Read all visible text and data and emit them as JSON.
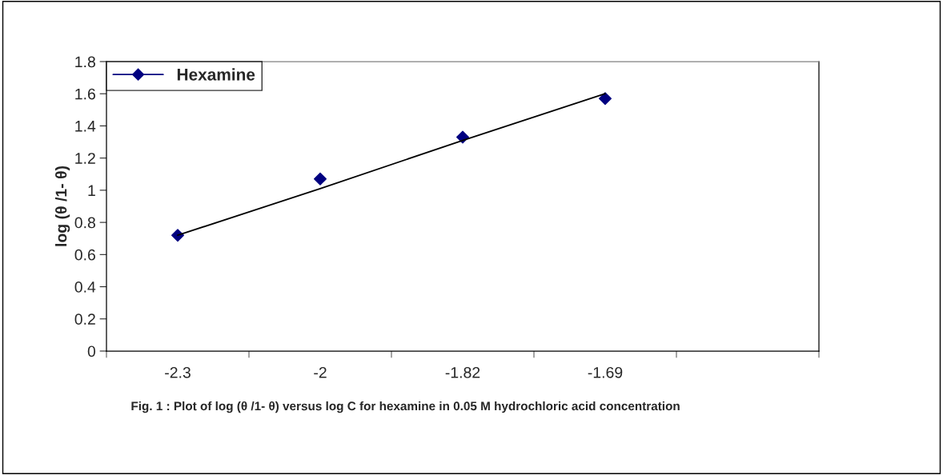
{
  "chart_data": {
    "type": "scatter",
    "ylabel": "log (θ /1- θ)",
    "categories": [
      "-2.3",
      "-2",
      "-1.82",
      "-1.69",
      null
    ],
    "series": [
      {
        "name": "Hexamine",
        "color": "#000080",
        "marker": "diamond",
        "values": [
          0.72,
          1.07,
          1.33,
          1.57,
          null
        ]
      },
      {
        "type": "line",
        "color": "#000000",
        "values": [
          0.72,
          1.01,
          1.31,
          1.6,
          null
        ]
      }
    ],
    "ylim": [
      0,
      1.8
    ],
    "yticks": [
      0,
      0.2,
      0.4,
      0.6,
      0.8,
      1,
      1.2,
      1.4,
      1.6,
      1.8
    ],
    "grid": false,
    "legend": "top left",
    "annotations": [
      "Fig. 1 : Plot of log (θ /1- θ) versus log C for hexamine in 0.05 M hydrochloric acid concentration"
    ]
  }
}
